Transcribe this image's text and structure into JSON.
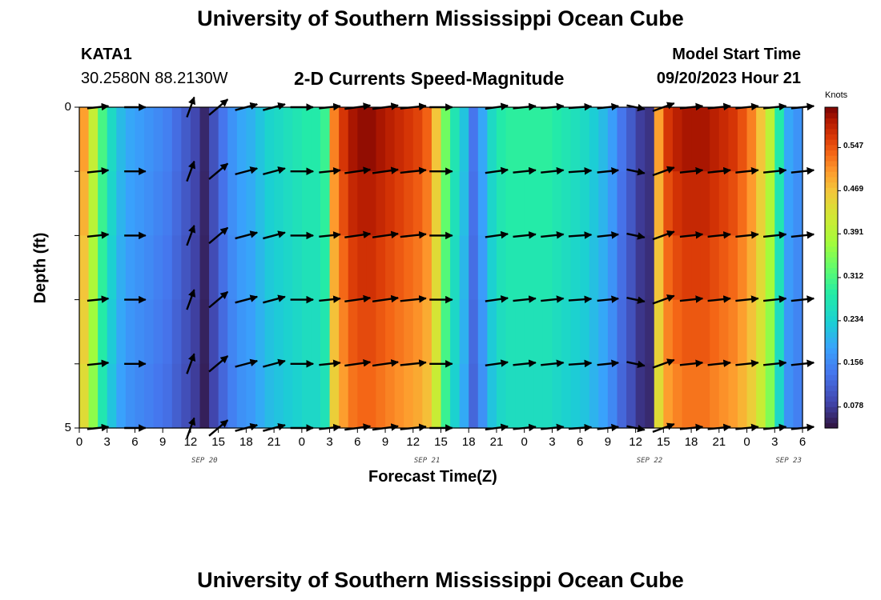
{
  "page": {
    "title": "University of Southern Mississippi Ocean Cube",
    "footer_title": "University of Southern Mississippi Ocean Cube",
    "station_id": "KATA1",
    "station_coords": "30.2580N  88.2130W",
    "plot_title": "2-D Currents Speed-Magnitude",
    "model_start_label": "Model Start Time",
    "model_start_value": "09/20/2023 Hour 21"
  },
  "chart_data": {
    "type": "heatmap",
    "title": "2-D Currents Speed-Magnitude",
    "xlabel": "Forecast Time(Z)",
    "ylabel": "Depth (ft)",
    "xlim": [
      0,
      78
    ],
    "ylim": [
      0,
      5
    ],
    "x_ticks": [
      {
        "value": 0,
        "label": "0"
      },
      {
        "value": 3,
        "label": "3"
      },
      {
        "value": 6,
        "label": "6"
      },
      {
        "value": 9,
        "label": "9"
      },
      {
        "value": 12,
        "label": "12"
      },
      {
        "value": 15,
        "label": "15"
      },
      {
        "value": 18,
        "label": "18"
      },
      {
        "value": 21,
        "label": "21"
      },
      {
        "value": 24,
        "label": "0"
      },
      {
        "value": 27,
        "label": "3"
      },
      {
        "value": 30,
        "label": "6"
      },
      {
        "value": 33,
        "label": "9"
      },
      {
        "value": 36,
        "label": "12"
      },
      {
        "value": 39,
        "label": "15"
      },
      {
        "value": 42,
        "label": "18"
      },
      {
        "value": 45,
        "label": "21"
      },
      {
        "value": 48,
        "label": "0"
      },
      {
        "value": 51,
        "label": "3"
      },
      {
        "value": 54,
        "label": "6"
      },
      {
        "value": 57,
        "label": "9"
      },
      {
        "value": 60,
        "label": "12"
      },
      {
        "value": 63,
        "label": "15"
      },
      {
        "value": 66,
        "label": "18"
      },
      {
        "value": 69,
        "label": "21"
      },
      {
        "value": 72,
        "label": "0"
      },
      {
        "value": 75,
        "label": "3"
      },
      {
        "value": 78,
        "label": "6"
      }
    ],
    "date_labels": [
      {
        "value": 13.5,
        "label": "SEP 20"
      },
      {
        "value": 37.5,
        "label": "SEP 21"
      },
      {
        "value": 61.5,
        "label": "SEP 22"
      },
      {
        "value": 76.5,
        "label": "SEP 23"
      }
    ],
    "y_ticks": [
      {
        "value": 0,
        "label": "0"
      },
      {
        "value": 5,
        "label": "5"
      }
    ],
    "y_levels": [
      0,
      1,
      2,
      3,
      4,
      5
    ],
    "colorbar": {
      "unit": "Knots",
      "min": 0.04,
      "max": 0.62,
      "ticks": [
        0.078,
        0.156,
        0.234,
        0.312,
        0.391,
        0.469,
        0.547
      ],
      "tick_labels": [
        "0.078",
        "0.156",
        "0.234",
        "0.312",
        "0.391",
        "0.469",
        "0.547"
      ]
    },
    "speed_profile": {
      "hours": [
        0,
        1,
        2,
        3,
        4,
        5,
        6,
        7,
        8,
        9,
        10,
        11,
        12,
        13,
        14,
        15,
        16,
        17,
        18,
        19,
        20,
        21,
        22,
        23,
        24,
        25,
        26,
        27,
        28,
        29,
        30,
        31,
        32,
        33,
        34,
        35,
        36,
        37,
        38,
        39,
        40,
        41,
        42,
        43,
        44,
        45,
        46,
        47,
        48,
        49,
        50,
        51,
        52,
        53,
        54,
        55,
        56,
        57,
        58,
        59,
        60,
        61,
        62,
        63,
        64,
        65,
        66,
        67,
        68,
        69,
        70,
        71,
        72,
        73,
        74,
        75,
        76,
        77
      ],
      "speed": [
        0.5,
        0.41,
        0.31,
        0.25,
        0.21,
        0.19,
        0.18,
        0.17,
        0.16,
        0.15,
        0.13,
        0.11,
        0.09,
        0.06,
        0.1,
        0.14,
        0.17,
        0.19,
        0.2,
        0.22,
        0.24,
        0.25,
        0.26,
        0.27,
        0.28,
        0.28,
        0.3,
        0.52,
        0.57,
        0.6,
        0.61,
        0.61,
        0.6,
        0.59,
        0.58,
        0.57,
        0.56,
        0.54,
        0.47,
        0.34,
        0.27,
        0.22,
        0.14,
        0.19,
        0.25,
        0.28,
        0.29,
        0.29,
        0.29,
        0.29,
        0.29,
        0.28,
        0.27,
        0.26,
        0.25,
        0.23,
        0.21,
        0.18,
        0.14,
        0.11,
        0.08,
        0.07,
        0.5,
        0.57,
        0.59,
        0.6,
        0.6,
        0.6,
        0.59,
        0.58,
        0.57,
        0.55,
        0.52,
        0.47,
        0.4,
        0.28,
        0.19,
        0.17
      ]
    },
    "vectors": {
      "hours": [
        2,
        6,
        12,
        15,
        18,
        21,
        24,
        27,
        30,
        33,
        36,
        39,
        45,
        48,
        51,
        54,
        57,
        60,
        63,
        66,
        69,
        72,
        75,
        78
      ],
      "depths": [
        0,
        1,
        2,
        3,
        4,
        5
      ],
      "direction_deg": [
        -6,
        0,
        -70,
        -40,
        -15,
        -15,
        0,
        -6,
        -8,
        -8,
        -6,
        0,
        -8,
        -6,
        -6,
        -4,
        -6,
        12,
        -20,
        -6,
        -6,
        -6,
        -6,
        -6
      ],
      "length_rel": [
        0.7,
        0.7,
        0.7,
        0.8,
        0.75,
        0.75,
        0.75,
        0.7,
        0.85,
        0.85,
        0.85,
        0.75,
        0.75,
        0.75,
        0.75,
        0.75,
        0.7,
        0.6,
        0.75,
        0.75,
        0.75,
        0.75,
        0.75,
        0.75
      ]
    }
  }
}
